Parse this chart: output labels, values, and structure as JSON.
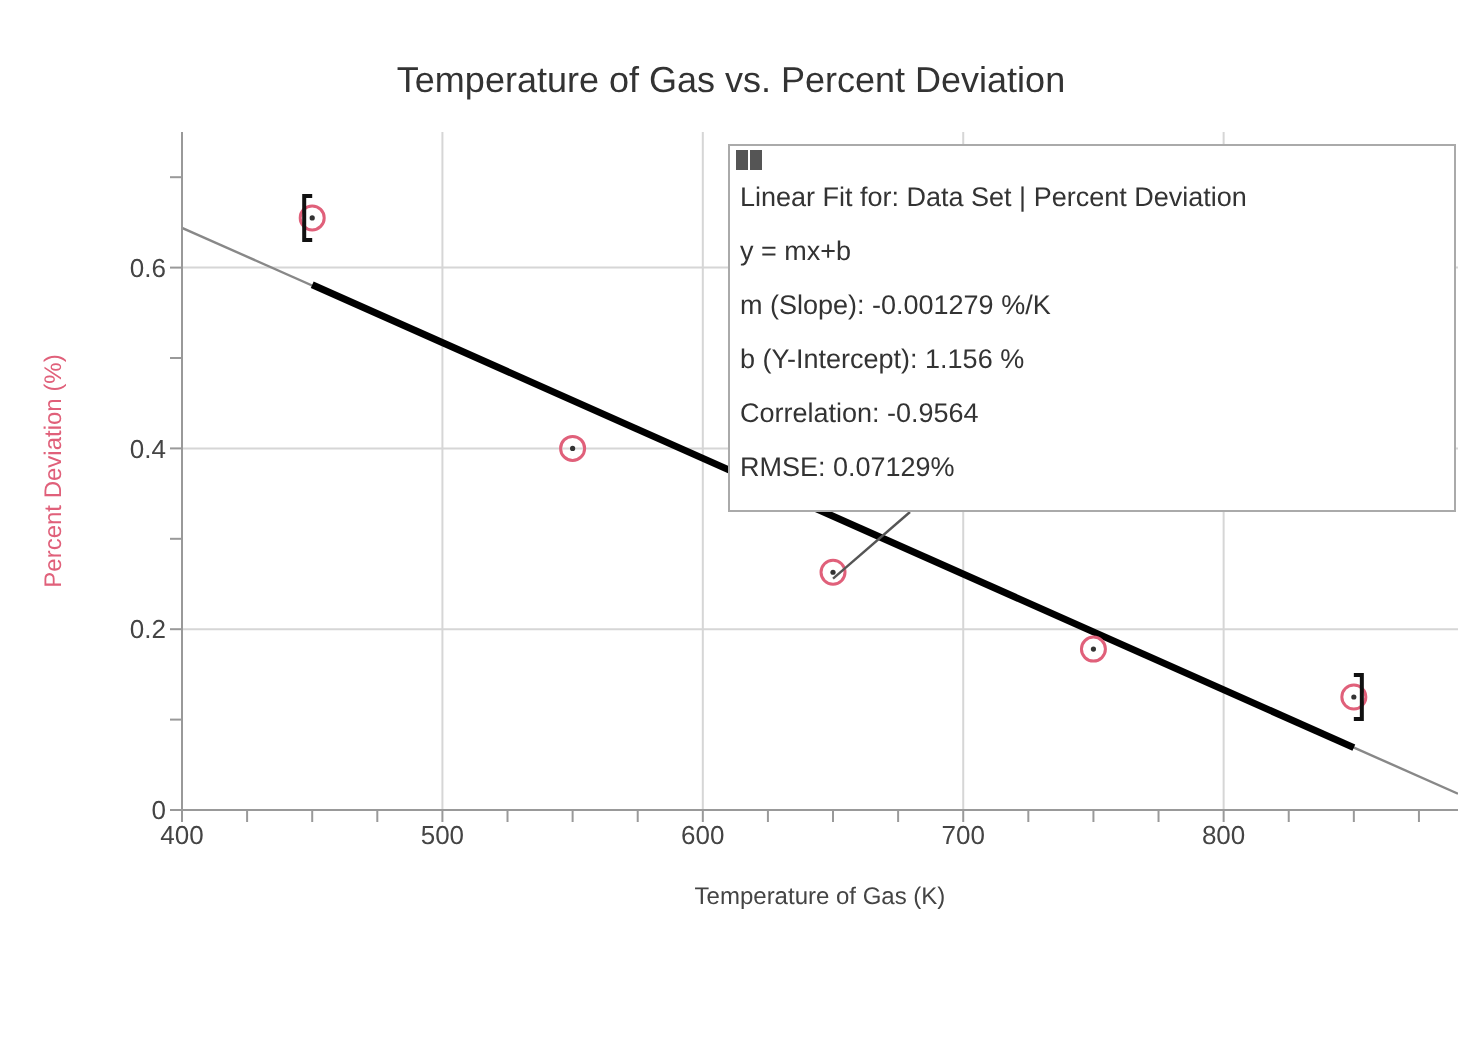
{
  "chart_data": {
    "type": "scatter",
    "title": "Temperature of Gas vs. Percent Deviation",
    "xlabel": "Temperature of Gas (K)",
    "ylabel": "Percent Deviation (%)",
    "xlim": [
      400,
      890
    ],
    "ylim": [
      0,
      0.75
    ],
    "xticks": [
      400,
      {
        "value": 425,
        "label": null
      },
      {
        "value": 450,
        "label": null
      },
      {
        "value": 475,
        "label": null
      },
      500,
      {
        "value": 525,
        "label": null
      },
      {
        "value": 550,
        "label": null
      },
      {
        "value": 575,
        "label": null
      },
      600,
      {
        "value": 625,
        "label": null
      },
      {
        "value": 650,
        "label": null
      },
      {
        "value": 675,
        "label": null
      },
      700,
      {
        "value": 725,
        "label": null
      },
      {
        "value": 750,
        "label": null
      },
      {
        "value": 775,
        "label": null
      },
      800,
      {
        "value": 825,
        "label": null
      },
      {
        "value": 850,
        "label": null
      },
      {
        "value": 875,
        "label": null
      }
    ],
    "yticks": [
      0,
      {
        "value": 0.1,
        "label": null
      },
      0.2,
      {
        "value": 0.3,
        "label": null
      },
      0.4,
      {
        "value": 0.5,
        "label": null
      },
      0.6,
      {
        "value": 0.7,
        "label": null
      }
    ],
    "grid": true,
    "series": [
      {
        "marker": "circle",
        "color": "#e0607a",
        "x": [
          450,
          550,
          650,
          750,
          850
        ],
        "values": [
          0.655,
          0.4,
          0.263,
          0.178,
          0.125
        ]
      },
      {
        "type": "line",
        "marker": "none",
        "color": "#888888",
        "x": [
          400,
          890
        ],
        "values": [
          0.644,
          0.018
        ]
      },
      {
        "type": "line",
        "marker": "none",
        "color": "#000000",
        "x": [
          450,
          850
        ],
        "values": [
          0.581,
          0.069
        ]
      }
    ],
    "annotations": [
      "Linear Fit for: Data Set | Percent Deviation",
      "y = mx+b",
      "m (Slope): -0.001279 %/K",
      "b (Y-Intercept): 1.156 %",
      "Correlation: -0.9564",
      {
        "text": "RMSE: 0.07129%",
        "x": 650,
        "y": 0.325
      }
    ]
  }
}
